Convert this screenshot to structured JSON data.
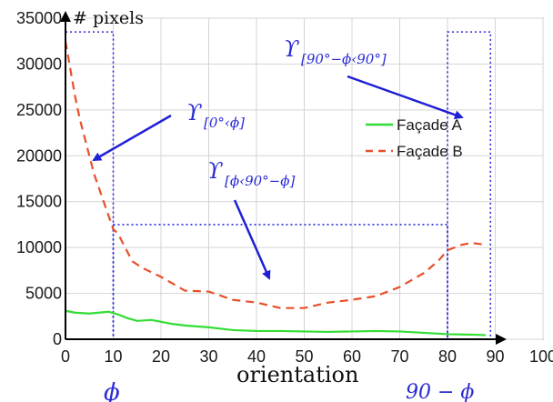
{
  "chart_data": {
    "type": "line",
    "xlabel": "orientation",
    "ylabel": "# pixels",
    "xlim": [
      0,
      100
    ],
    "ylim": [
      0,
      35000
    ],
    "x_ticks": [
      0,
      10,
      20,
      30,
      40,
      50,
      60,
      70,
      80,
      90,
      100
    ],
    "y_ticks": [
      0,
      5000,
      10000,
      15000,
      20000,
      25000,
      30000,
      35000
    ],
    "legend_position": "right",
    "series": [
      {
        "name": "Façade A",
        "color": "#33dd33",
        "style": "solid",
        "x": [
          0,
          2,
          5,
          7,
          9,
          11,
          13,
          15,
          18,
          20,
          22,
          25,
          30,
          35,
          40,
          45,
          50,
          55,
          60,
          65,
          70,
          75,
          80,
          85,
          88
        ],
        "y": [
          3100,
          2900,
          2800,
          2900,
          3000,
          2700,
          2300,
          2000,
          2100,
          1900,
          1700,
          1500,
          1300,
          1000,
          900,
          900,
          850,
          800,
          850,
          900,
          850,
          700,
          550,
          500,
          450
        ]
      },
      {
        "name": "Façade B",
        "color": "#e8502a",
        "style": "dashed",
        "x": [
          0,
          1,
          2,
          3,
          4,
          5,
          6,
          7,
          8,
          9,
          10,
          11,
          12,
          14,
          16,
          20,
          25,
          30,
          35,
          40,
          45,
          50,
          55,
          60,
          65,
          70,
          72,
          75,
          78,
          80,
          83,
          85,
          88
        ],
        "y": [
          32500,
          29500,
          26500,
          24000,
          22000,
          20000,
          18000,
          16500,
          15000,
          13500,
          12000,
          11500,
          10500,
          8500,
          7800,
          6800,
          5300,
          5200,
          4300,
          4000,
          3400,
          3400,
          4000,
          4300,
          4700,
          5700,
          6300,
          7200,
          8500,
          9700,
          10300,
          10500,
          10300
        ]
      }
    ],
    "regions": [
      {
        "label": "ϒ",
        "subscript": "[0°‹ϕ]",
        "x": [
          0,
          10
        ],
        "y": [
          0,
          33500
        ]
      },
      {
        "label": "ϒ",
        "subscript": "[ϕ‹90°−ϕ]",
        "x": [
          10,
          80
        ],
        "y": [
          0,
          12500
        ]
      },
      {
        "label": "ϒ",
        "subscript": "[90°−ϕ‹90°]",
        "x": [
          80,
          89
        ],
        "y": [
          0,
          33500
        ]
      }
    ],
    "axis_markers": {
      "phi": "ϕ",
      "ninety_minus_phi": "90 − ϕ"
    }
  }
}
